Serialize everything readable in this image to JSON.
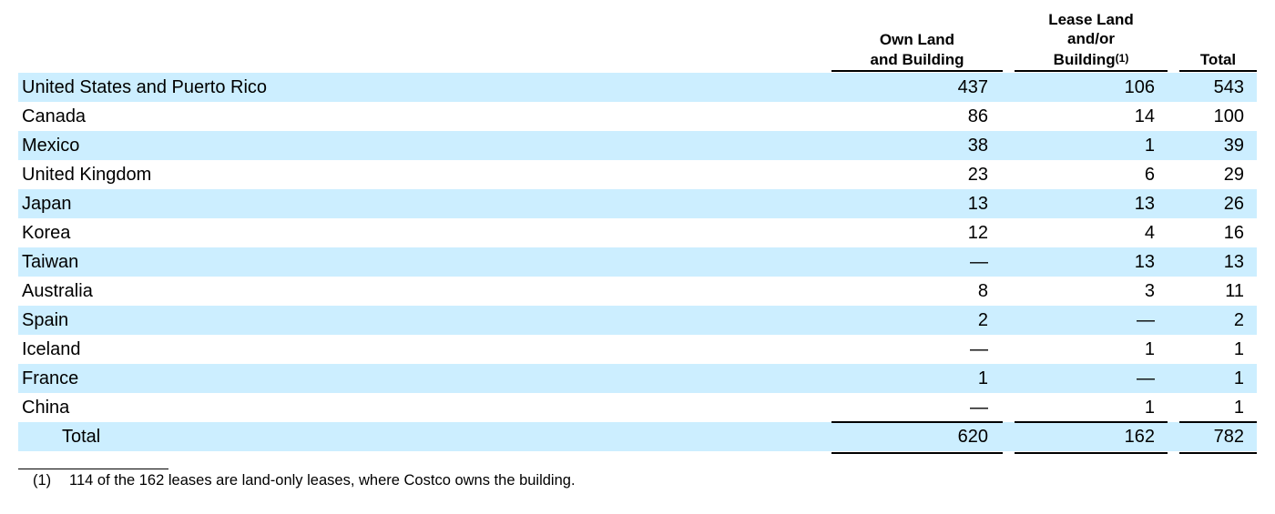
{
  "columns": {
    "own": [
      "Own Land",
      "and Building"
    ],
    "lease": [
      "Lease Land",
      "and/or",
      "Building",
      "(1)"
    ],
    "total": "Total"
  },
  "rows": [
    {
      "label": "United States and Puerto Rico",
      "own": "437",
      "lease": "106",
      "total": "543"
    },
    {
      "label": "Canada",
      "own": "86",
      "lease": "14",
      "total": "100"
    },
    {
      "label": "Mexico",
      "own": "38",
      "lease": "1",
      "total": "39"
    },
    {
      "label": "United Kingdom",
      "own": "23",
      "lease": "6",
      "total": "29"
    },
    {
      "label": "Japan",
      "own": "13",
      "lease": "13",
      "total": "26"
    },
    {
      "label": "Korea",
      "own": "12",
      "lease": "4",
      "total": "16"
    },
    {
      "label": "Taiwan",
      "own": "—",
      "lease": "13",
      "total": "13"
    },
    {
      "label": "Australia",
      "own": "8",
      "lease": "3",
      "total": "11"
    },
    {
      "label": "Spain",
      "own": "2",
      "lease": "—",
      "total": "2"
    },
    {
      "label": "Iceland",
      "own": "—",
      "lease": "1",
      "total": "1"
    },
    {
      "label": "France",
      "own": "1",
      "lease": "—",
      "total": "1"
    },
    {
      "label": "China",
      "own": "—",
      "lease": "1",
      "total": "1"
    }
  ],
  "total_row": {
    "label": "Total",
    "own": "620",
    "lease": "162",
    "total": "782"
  },
  "footnote": {
    "mark": "(1)",
    "text": "114 of the 162 leases are land-only leases, where Costco owns the building."
  },
  "colors": {
    "row_shade": "#cceeff"
  }
}
